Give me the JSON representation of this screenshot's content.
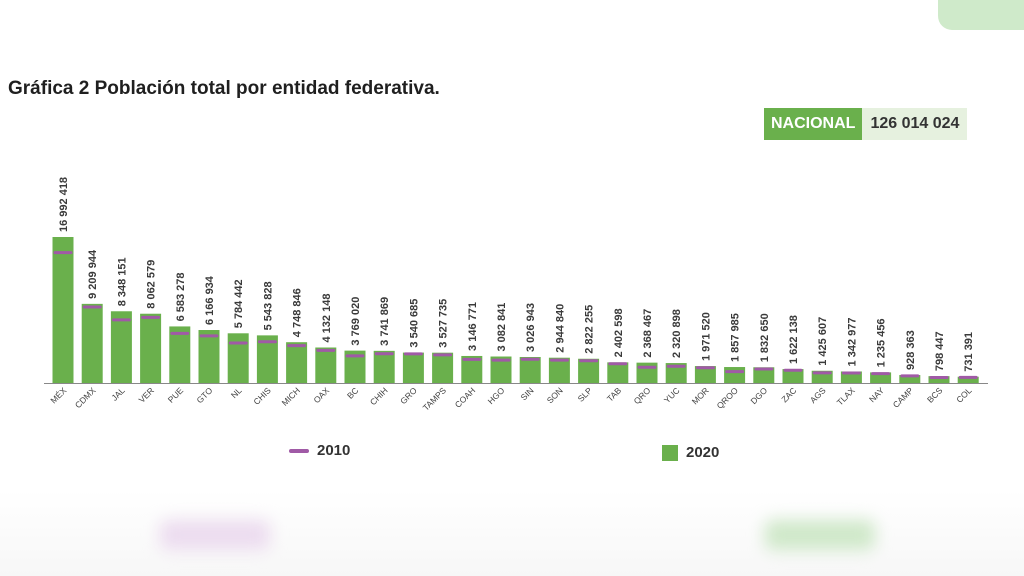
{
  "title": "Gráfica 2 Población total por entidad federativa.",
  "national": {
    "label": "NACIONAL",
    "value": "126 014 024"
  },
  "legend": {
    "s2010": "2010",
    "s2020": "2020"
  },
  "colors": {
    "bar2020": "#6ab04c",
    "marker2010": "#a05aa6",
    "accent": "#6ab04c"
  },
  "chart_data": {
    "type": "bar",
    "title": "Gráfica 2 Población total por entidad federativa.",
    "xlabel": "",
    "ylabel": "",
    "ylim": [
      0,
      17500000
    ],
    "grid": false,
    "legend_position": "bottom",
    "categories": [
      "MÉX",
      "CDMX",
      "JAL",
      "VER",
      "PUE",
      "GTO",
      "NL",
      "CHIS",
      "MICH",
      "OAX",
      "BC",
      "CHIH",
      "GRO",
      "TAMPS",
      "COAH",
      "HGO",
      "SIN",
      "SON",
      "SLP",
      "TAB",
      "QRO",
      "YUC",
      "MOR",
      "QROO",
      "DGO",
      "ZAC",
      "AGS",
      "TLAX",
      "NAY",
      "CAMP",
      "BCS",
      "COL"
    ],
    "labels": [
      "16 992 418",
      "9 209 944",
      "8 348 151",
      "8 062 579",
      "6 583 278",
      "6 166 934",
      "5 784 442",
      "5 543 828",
      "4 748 846",
      "4 132 148",
      "3 769 020",
      "3 741 869",
      "3 540 685",
      "3 527 735",
      "3 146 771",
      "3 082 841",
      "3 026 943",
      "2 944 840",
      "2 822 255",
      "2 402 598",
      "2 368 467",
      "2 320 898",
      "1 971 520",
      "1 857 985",
      "1 832 650",
      "1 622 138",
      "1 425 607",
      "1 342 977",
      "1 235 456",
      "928 363",
      "798 447",
      "731 391"
    ],
    "series": [
      {
        "name": "2020",
        "values": [
          16992418,
          9209944,
          8348151,
          8062579,
          6583278,
          6166934,
          5784442,
          5543828,
          4748846,
          4132148,
          3769020,
          3741869,
          3540685,
          3527735,
          3146771,
          3082841,
          3026943,
          2944840,
          2822255,
          2402598,
          2368467,
          2320898,
          1971520,
          1857985,
          1832650,
          1622138,
          1425607,
          1342977,
          1235456,
          928363,
          798447,
          731391
        ]
      },
      {
        "name": "2010",
        "values": [
          15175862,
          8851080,
          7350682,
          7643194,
          5779829,
          5486372,
          4653458,
          4796580,
          4351037,
          3801962,
          3155070,
          3406465,
          3388768,
          3268554,
          2748391,
          2665018,
          2767761,
          2662480,
          2585518,
          2238603,
          1827937,
          1955577,
          1777227,
          1325578,
          1632934,
          1490668,
          1184996,
          1169936,
          1084979,
          822441,
          637026,
          650555
        ]
      }
    ]
  }
}
